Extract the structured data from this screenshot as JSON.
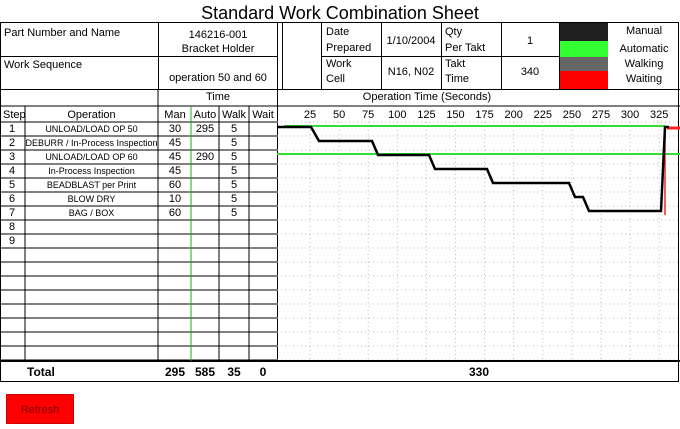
{
  "title": "Standard Work Combination Sheet",
  "header": {
    "part_label": "Part Number and Name",
    "part_number": "146216-001",
    "part_name": "Bracket Holder",
    "seq_label": "Work Sequence",
    "seq_value": "operation 50 and 60",
    "date_label": "Date",
    "date_label2": "Prepared",
    "date_value": "1/10/2004",
    "qty_label": "Qty",
    "qty_label2": "Per Takt",
    "qty_value": "1",
    "cell_label": "Work",
    "cell_label2": "Cell",
    "cell_value": "N16, N02",
    "takt_label": "Takt",
    "takt_label2": "Time",
    "takt_value": "340"
  },
  "legend": [
    {
      "label": "Manual",
      "color": "#202020"
    },
    {
      "label": "Automatic",
      "color": "#33ff33"
    },
    {
      "label": "Walking",
      "color": "#666666"
    },
    {
      "label": "Waiting",
      "color": "#ff0000"
    }
  ],
  "columns": {
    "step": "Step",
    "operation": "Operation",
    "time": "Time",
    "man": "Man",
    "auto": "Auto",
    "walk": "Walk",
    "wait": "Wait",
    "op_time": "Operation Time (Seconds)"
  },
  "ticks": [
    "25",
    "50",
    "75",
    "100",
    "125",
    "150",
    "175",
    "200",
    "225",
    "250",
    "275",
    "300",
    "325"
  ],
  "rows": [
    {
      "step": "1",
      "op": "UNLOAD/LOAD OP 50",
      "man": "30",
      "auto": "295",
      "walk": "5",
      "wait": ""
    },
    {
      "step": "2",
      "op": "DEBURR / In-Process Inspection",
      "man": "45",
      "auto": "",
      "walk": "5",
      "wait": ""
    },
    {
      "step": "3",
      "op": "UNLOAD/LOAD OP 60",
      "man": "45",
      "auto": "290",
      "walk": "5",
      "wait": ""
    },
    {
      "step": "4",
      "op": "In-Process Inspection",
      "man": "45",
      "auto": "",
      "walk": "5",
      "wait": ""
    },
    {
      "step": "5",
      "op": "BEADBLAST per Print",
      "man": "60",
      "auto": "",
      "walk": "5",
      "wait": ""
    },
    {
      "step": "6",
      "op": "BLOW DRY",
      "man": "10",
      "auto": "",
      "walk": "5",
      "wait": ""
    },
    {
      "step": "7",
      "op": "BAG / BOX",
      "man": "60",
      "auto": "",
      "walk": "5",
      "wait": ""
    },
    {
      "step": "8",
      "op": "",
      "man": "",
      "auto": "",
      "walk": "",
      "wait": ""
    },
    {
      "step": "9",
      "op": "",
      "man": "",
      "auto": "",
      "walk": "",
      "wait": ""
    }
  ],
  "totals": {
    "label": "Total",
    "man": "295",
    "auto": "585",
    "walk": "35",
    "wait": "0",
    "op_time": "330"
  },
  "refresh_label": "Refresh"
}
